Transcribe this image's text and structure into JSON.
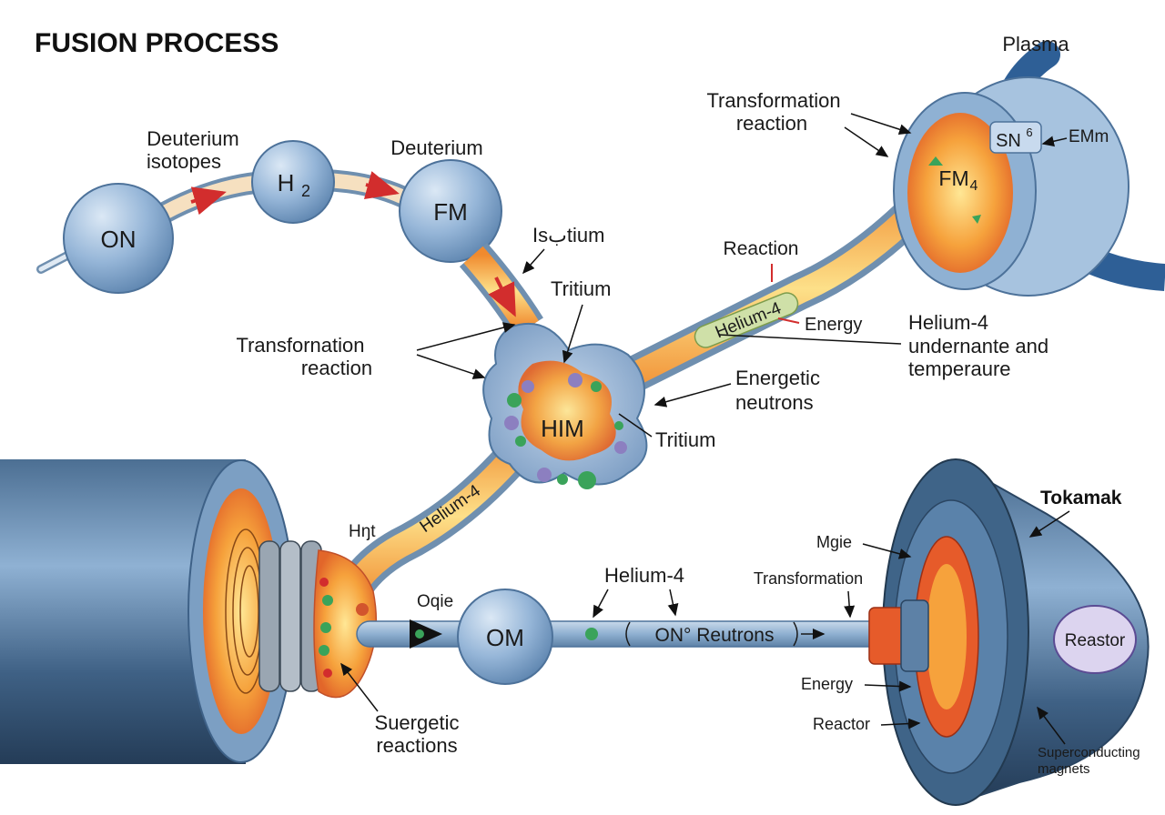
{
  "title": "FUSION PROCESS",
  "colors": {
    "sphere": "#8fb1d6",
    "pipe_orange": "#f29a35",
    "pipe_yellow": "#fde089",
    "steel_dark": "#2f4c6a",
    "steel_light": "#7ea2c6",
    "arrow_red": "#d22d2d",
    "particle_green": "#3aa35a",
    "particle_purple": "#8c7fc0"
  },
  "nodes": {
    "on_left": "ON",
    "h2": "H",
    "h2_sub": "2",
    "fm": "FM",
    "him": "HIM",
    "om": "OM",
    "fm4": "FM",
    "fm4_sub": "4",
    "sn6": "SN",
    "sn6_sup": "6",
    "reactor_oval": "Reastor"
  },
  "labels": {
    "deuterium_isotopes_1": "Deuterium",
    "deuterium_isotopes_2": "isotopes",
    "deuterium": "Deuterium",
    "isotium": "Isبtium",
    "tritium_top": "Tritium",
    "transformation_left_1": "Transfornation",
    "transformation_left_2": "reaction",
    "transformation_top_1": "Transformation",
    "transformation_top_2": "reaction",
    "plasma": "Plasma",
    "emm": "EMm",
    "reaction": "Reaction",
    "energy_mid": "Energy",
    "helium4_right_1": "Helium-4",
    "helium4_right_2": "undernante and",
    "helium4_right_3": "temperaure",
    "energetic_1": "Energetic",
    "energetic_2": "neutrons",
    "tritium_mid": "Tritium",
    "helium4_pipe_top": "Helium-4",
    "helium4_pipe_left": "Helium-4",
    "hnt": "Hŋt",
    "ogie": "Oqie",
    "helium4_bottom": "Helium-4",
    "on_reutrons": "ON° Reutrons",
    "transformation_bottom": "Transformation",
    "mgie": "Mgie",
    "tokamak": "Tokamak",
    "energy_bottom": "Energy",
    "reactor_bottom": "Reactor",
    "suergetic_1": "Suergetic",
    "suergetic_2": "reactions",
    "superconducting_1": "Superconducting",
    "superconducting_2": "magnets"
  }
}
